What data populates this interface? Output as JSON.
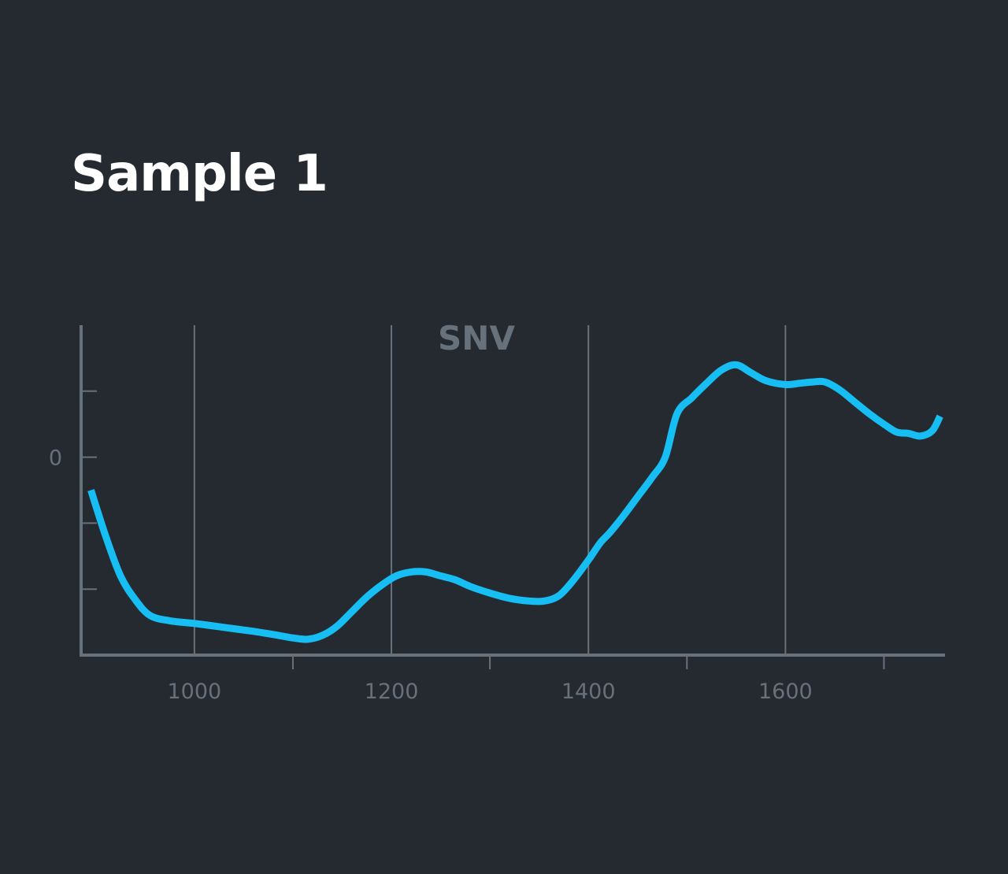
{
  "title": "Sample 1",
  "chart_data": {
    "type": "line",
    "title": "SNV",
    "xlabel": "",
    "ylabel": "",
    "xlim": [
      885,
      1762
    ],
    "ylim": [
      -1.5,
      1.0
    ],
    "x_ticks_labeled": [
      1000,
      1200,
      1400,
      1600
    ],
    "x_ticks_minor": [
      1100,
      1300,
      1500,
      1700
    ],
    "y_ticks": [
      -1.0,
      -0.5,
      0,
      0.5
    ],
    "y_tick_labels": [
      "",
      "",
      "0",
      ""
    ],
    "grid": "vertical at labeled x ticks",
    "colors": {
      "background": "#252a31",
      "line": "#17bef3",
      "axis": "#66717c",
      "grid": "#66717c",
      "title": "#ffffff"
    },
    "series": [
      {
        "x": [
          895,
          910,
          925,
          940,
          955,
          975,
          1000,
          1030,
          1060,
          1085,
          1100,
          1115,
          1130,
          1145,
          1160,
          1175,
          1190,
          1205,
          1220,
          1235,
          1250,
          1265,
          1280,
          1300,
          1320,
          1340,
          1355,
          1370,
          1385,
          1400,
          1412,
          1422,
          1435,
          1450,
          1465,
          1478,
          1490,
          1505,
          1520,
          1535,
          1550,
          1565,
          1580,
          1600,
          1615,
          1628,
          1640,
          1655,
          1670,
          1685,
          1700,
          1713,
          1725,
          1737,
          1749,
          1757
        ],
        "y": [
          -0.25,
          -0.6,
          -0.9,
          -1.08,
          -1.2,
          -1.24,
          -1.26,
          -1.29,
          -1.32,
          -1.35,
          -1.37,
          -1.38,
          -1.35,
          -1.28,
          -1.17,
          -1.06,
          -0.97,
          -0.9,
          -0.87,
          -0.87,
          -0.9,
          -0.93,
          -0.98,
          -1.03,
          -1.07,
          -1.09,
          -1.09,
          -1.05,
          -0.93,
          -0.78,
          -0.65,
          -0.57,
          -0.45,
          -0.3,
          -0.15,
          0.0,
          0.33,
          0.45,
          0.56,
          0.66,
          0.7,
          0.64,
          0.58,
          0.55,
          0.56,
          0.57,
          0.57,
          0.51,
          0.42,
          0.33,
          0.25,
          0.19,
          0.18,
          0.16,
          0.2,
          0.31
        ]
      }
    ]
  }
}
